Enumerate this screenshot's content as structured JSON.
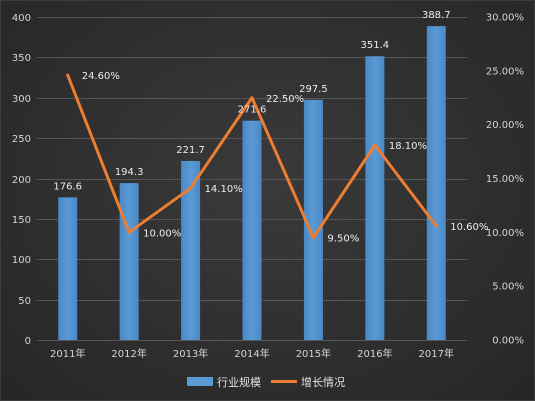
{
  "chart_data": {
    "type": "bar",
    "categories": [
      "2011年",
      "2012年",
      "2013年",
      "2014年",
      "2015年",
      "2016年",
      "2017年"
    ],
    "series": [
      {
        "name": "行业规模",
        "type": "bar",
        "axis": "left",
        "color": "#5b9bd5",
        "values": [
          176.6,
          194.3,
          221.7,
          271.6,
          297.5,
          351.4,
          388.7
        ],
        "labels": [
          "176.6",
          "194.3",
          "221.7",
          "271.6",
          "297.5",
          "351.4",
          "388.7"
        ]
      },
      {
        "name": "增长情况",
        "type": "line",
        "axis": "right",
        "color": "#ed7d31",
        "values": [
          24.6,
          10.0,
          14.1,
          22.5,
          9.5,
          18.1,
          10.6
        ],
        "labels": [
          "24.60%",
          "10.00%",
          "14.10%",
          "22.50%",
          "9.50%",
          "18.10%",
          "10.60%"
        ]
      }
    ],
    "left_axis": {
      "ylim": [
        0,
        400
      ],
      "ticks": [
        0,
        50,
        100,
        150,
        200,
        250,
        300,
        350,
        400
      ],
      "tick_labels": [
        "0",
        "50",
        "100",
        "150",
        "200",
        "250",
        "300",
        "350",
        "400"
      ]
    },
    "right_axis": {
      "ylim": [
        0,
        30
      ],
      "ticks": [
        0,
        5,
        10,
        15,
        20,
        25,
        30
      ],
      "tick_labels": [
        "0.00%",
        "5.00%",
        "10.00%",
        "15.00%",
        "20.00%",
        "25.00%",
        "30.00%"
      ]
    },
    "grid": true,
    "legend": "bottom"
  }
}
